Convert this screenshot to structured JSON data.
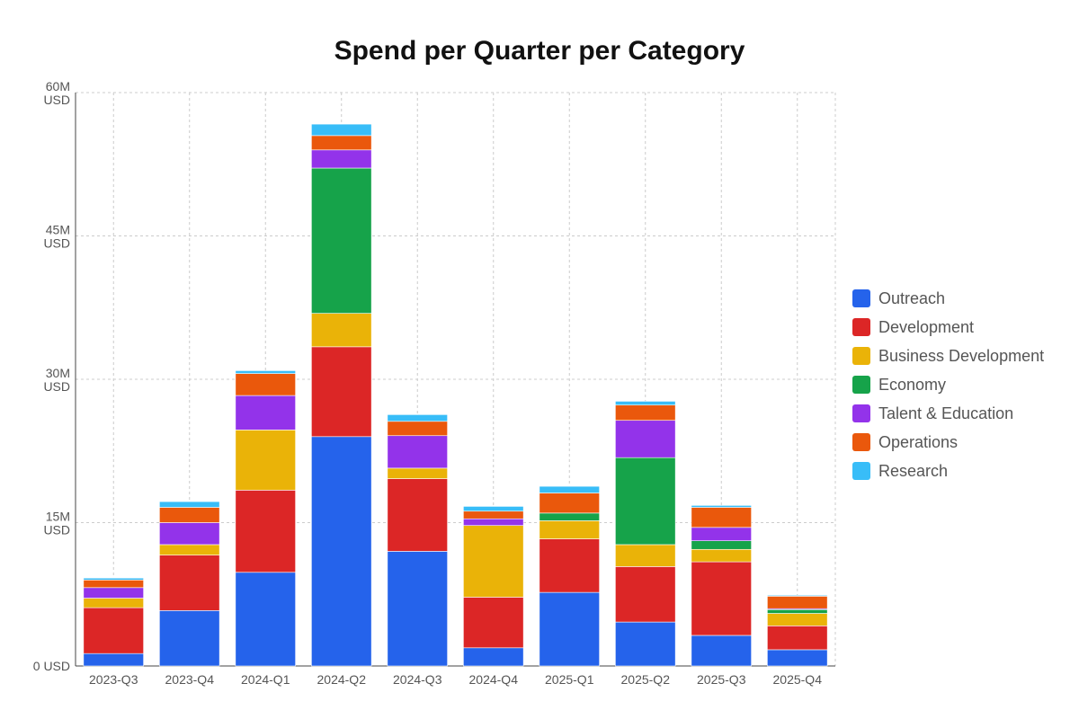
{
  "chart_data": {
    "type": "bar",
    "stacked": true,
    "title": "Spend per Quarter per Category",
    "xlabel": "",
    "ylabel": "",
    "categories": [
      "2023-Q3",
      "2023-Q4",
      "2024-Q1",
      "2024-Q2",
      "2024-Q3",
      "2024-Q4",
      "2025-Q1",
      "2025-Q2",
      "2025-Q3",
      "2025-Q4"
    ],
    "ylim": [
      0,
      60
    ],
    "yticks": [
      {
        "value": 0,
        "label": "0 USD"
      },
      {
        "value": 15,
        "label": "15M USD"
      },
      {
        "value": 30,
        "label": "30M USD"
      },
      {
        "value": 45,
        "label": "45M USD"
      },
      {
        "value": 60,
        "label": "60M USD"
      }
    ],
    "grid": true,
    "legend_position": "right",
    "series": [
      {
        "name": "Outreach",
        "color": "#2563eb",
        "values": [
          1.3,
          5.8,
          9.8,
          24.0,
          12.0,
          1.9,
          7.7,
          4.6,
          3.2,
          1.7
        ]
      },
      {
        "name": "Development",
        "color": "#dc2626",
        "values": [
          4.8,
          5.8,
          8.6,
          9.4,
          7.6,
          5.3,
          5.6,
          5.8,
          7.7,
          2.5
        ]
      },
      {
        "name": "Business Development",
        "color": "#eab308",
        "values": [
          1.0,
          1.1,
          6.3,
          3.5,
          1.1,
          7.5,
          1.9,
          2.3,
          1.3,
          1.3
        ]
      },
      {
        "name": "Economy",
        "color": "#16a34a",
        "values": [
          0.0,
          0.0,
          0.0,
          15.2,
          0.0,
          0.0,
          0.8,
          9.1,
          0.9,
          0.4
        ]
      },
      {
        "name": "Talent & Education",
        "color": "#9333ea",
        "values": [
          1.1,
          2.3,
          3.6,
          1.9,
          3.4,
          0.7,
          0.0,
          3.9,
          1.4,
          0.1
        ]
      },
      {
        "name": "Operations",
        "color": "#ea580c",
        "values": [
          0.8,
          1.6,
          2.3,
          1.5,
          1.5,
          0.8,
          2.1,
          1.6,
          2.1,
          1.3
        ]
      },
      {
        "name": "Research",
        "color": "#38bdf8",
        "values": [
          0.2,
          0.6,
          0.3,
          1.2,
          0.7,
          0.5,
          0.7,
          0.4,
          0.2,
          0.1
        ]
      }
    ]
  }
}
